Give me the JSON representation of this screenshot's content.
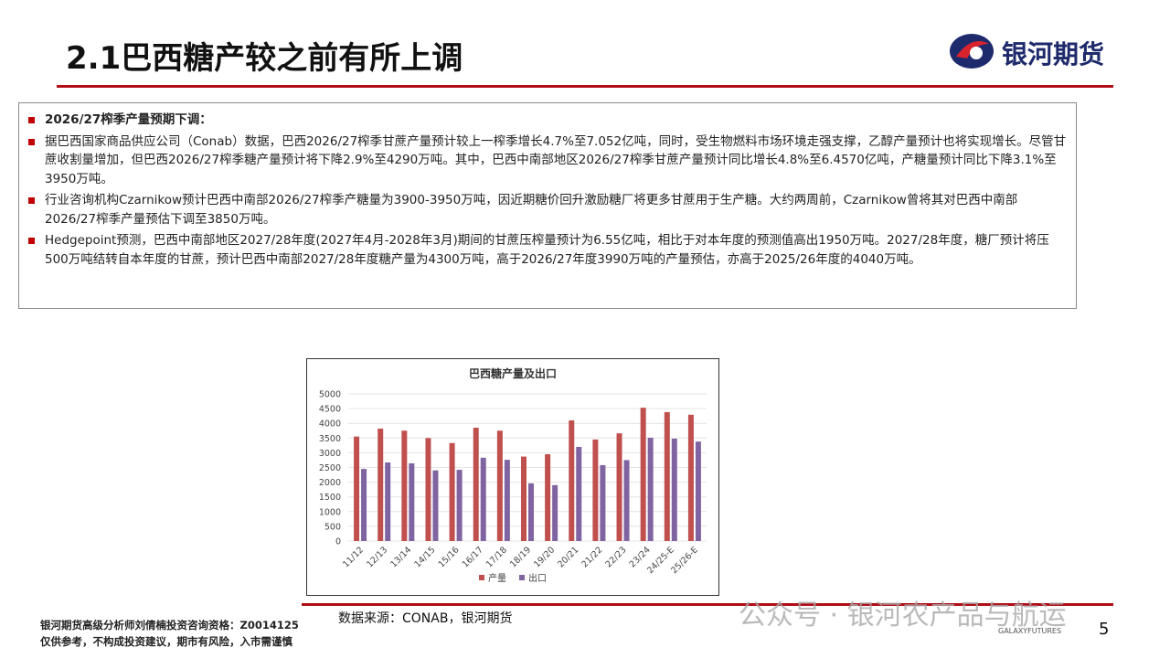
{
  "header": {
    "title": "2.1巴西糖产较之前有所上调",
    "logo_text": "银河期货"
  },
  "bullets": [
    "2026/27榨季产量预期下调：",
    "据巴西国家商品供应公司（Conab）数据，巴西2026/27榨季甘蔗产量预计较上一榨季增长4.7%至7.052亿吨，同时，受生物燃料市场环境走强支撑，乙醇产量预计也将实现增长。尽管甘蔗收割量增加，但巴西2026/27榨季糖产量预计将下降2.9%至4290万吨。其中，巴西中南部地区2026/27榨季甘蔗产量预计同比增长4.8%至6.4570亿吨，产糖量预计同比下降3.1%至3950万吨。",
    "行业咨询机构Czarnikow预计巴西中南部2026/27榨季产糖量为3900-3950万吨，因近期糖价回升激励糖厂将更多甘蔗用于生产糖。大约两周前，Czarnikow曾将其对巴西中南部2026/27榨季产量预估下调至3850万吨。",
    "Hedgepoint预测，巴西中南部地区2027/28年度(2027年4月-2028年3月)期间的甘蔗压榨量预计为6.55亿吨，相比于对本年度的预测值高出1950万吨。2027/28年度，糖厂预计将压500万吨结转自本年度的甘蔗，预计巴西中南部2027/28年度糖产量为4300万吨，高于2026/27年度3990万吨的产量预估，亦高于2025/26年度的4040万吨。"
  ],
  "chart_data": {
    "type": "bar",
    "title": "巴西糖产量及出口",
    "categories": [
      "11/12",
      "12/13",
      "13/14",
      "14/15",
      "15/16",
      "16/17",
      "17/18",
      "18/19",
      "19/20",
      "20/21",
      "21/22",
      "22/23",
      "23/24",
      "24/25-E",
      "25/26-E"
    ],
    "series": [
      {
        "name": "产量",
        "color": "#c0504d",
        "values": [
          3550,
          3820,
          3750,
          3500,
          3330,
          3850,
          3750,
          2870,
          2950,
          4100,
          3450,
          3660,
          4530,
          4380,
          4290
        ]
      },
      {
        "name": "出口",
        "color": "#8064a2",
        "values": [
          2450,
          2670,
          2640,
          2400,
          2420,
          2830,
          2760,
          1960,
          1900,
          3200,
          2580,
          2750,
          3510,
          3480,
          3380
        ]
      }
    ],
    "ylim": [
      0,
      5000
    ],
    "yticks": [
      0,
      500,
      1000,
      1500,
      2000,
      2500,
      3000,
      3500,
      4000,
      4500,
      5000
    ]
  },
  "source": "数据来源：CONAB，银河期货",
  "footer": {
    "analyst": "银河期货高级分析师刘倩楠投资咨询资格：Z0014125",
    "disclaimer": "仅供参考，不构成投资建议，期市有风险，入市需谨慎",
    "watermark": "公众号 · 银河农产品与航运",
    "brand": "GALAXYFUTURES",
    "page": "5"
  }
}
